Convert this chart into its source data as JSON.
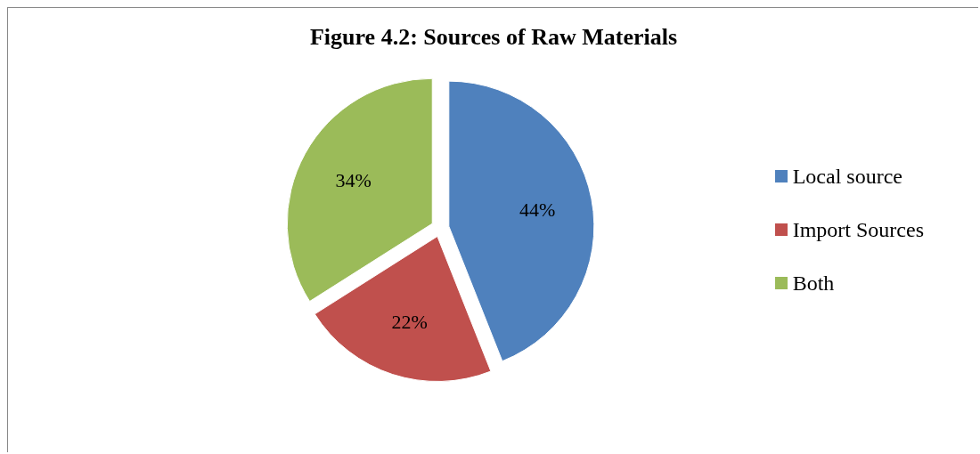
{
  "chart_data": {
    "type": "pie",
    "title": "Figure 4.2: Sources of Raw Materials",
    "categories": [
      "Local source",
      "Import Sources",
      "Both"
    ],
    "values": [
      44,
      22,
      34
    ],
    "colors": [
      "#4f81bd",
      "#c0504d",
      "#9bbb59"
    ],
    "value_labels": [
      "44%",
      "22%",
      "34%"
    ],
    "legend": "right"
  }
}
